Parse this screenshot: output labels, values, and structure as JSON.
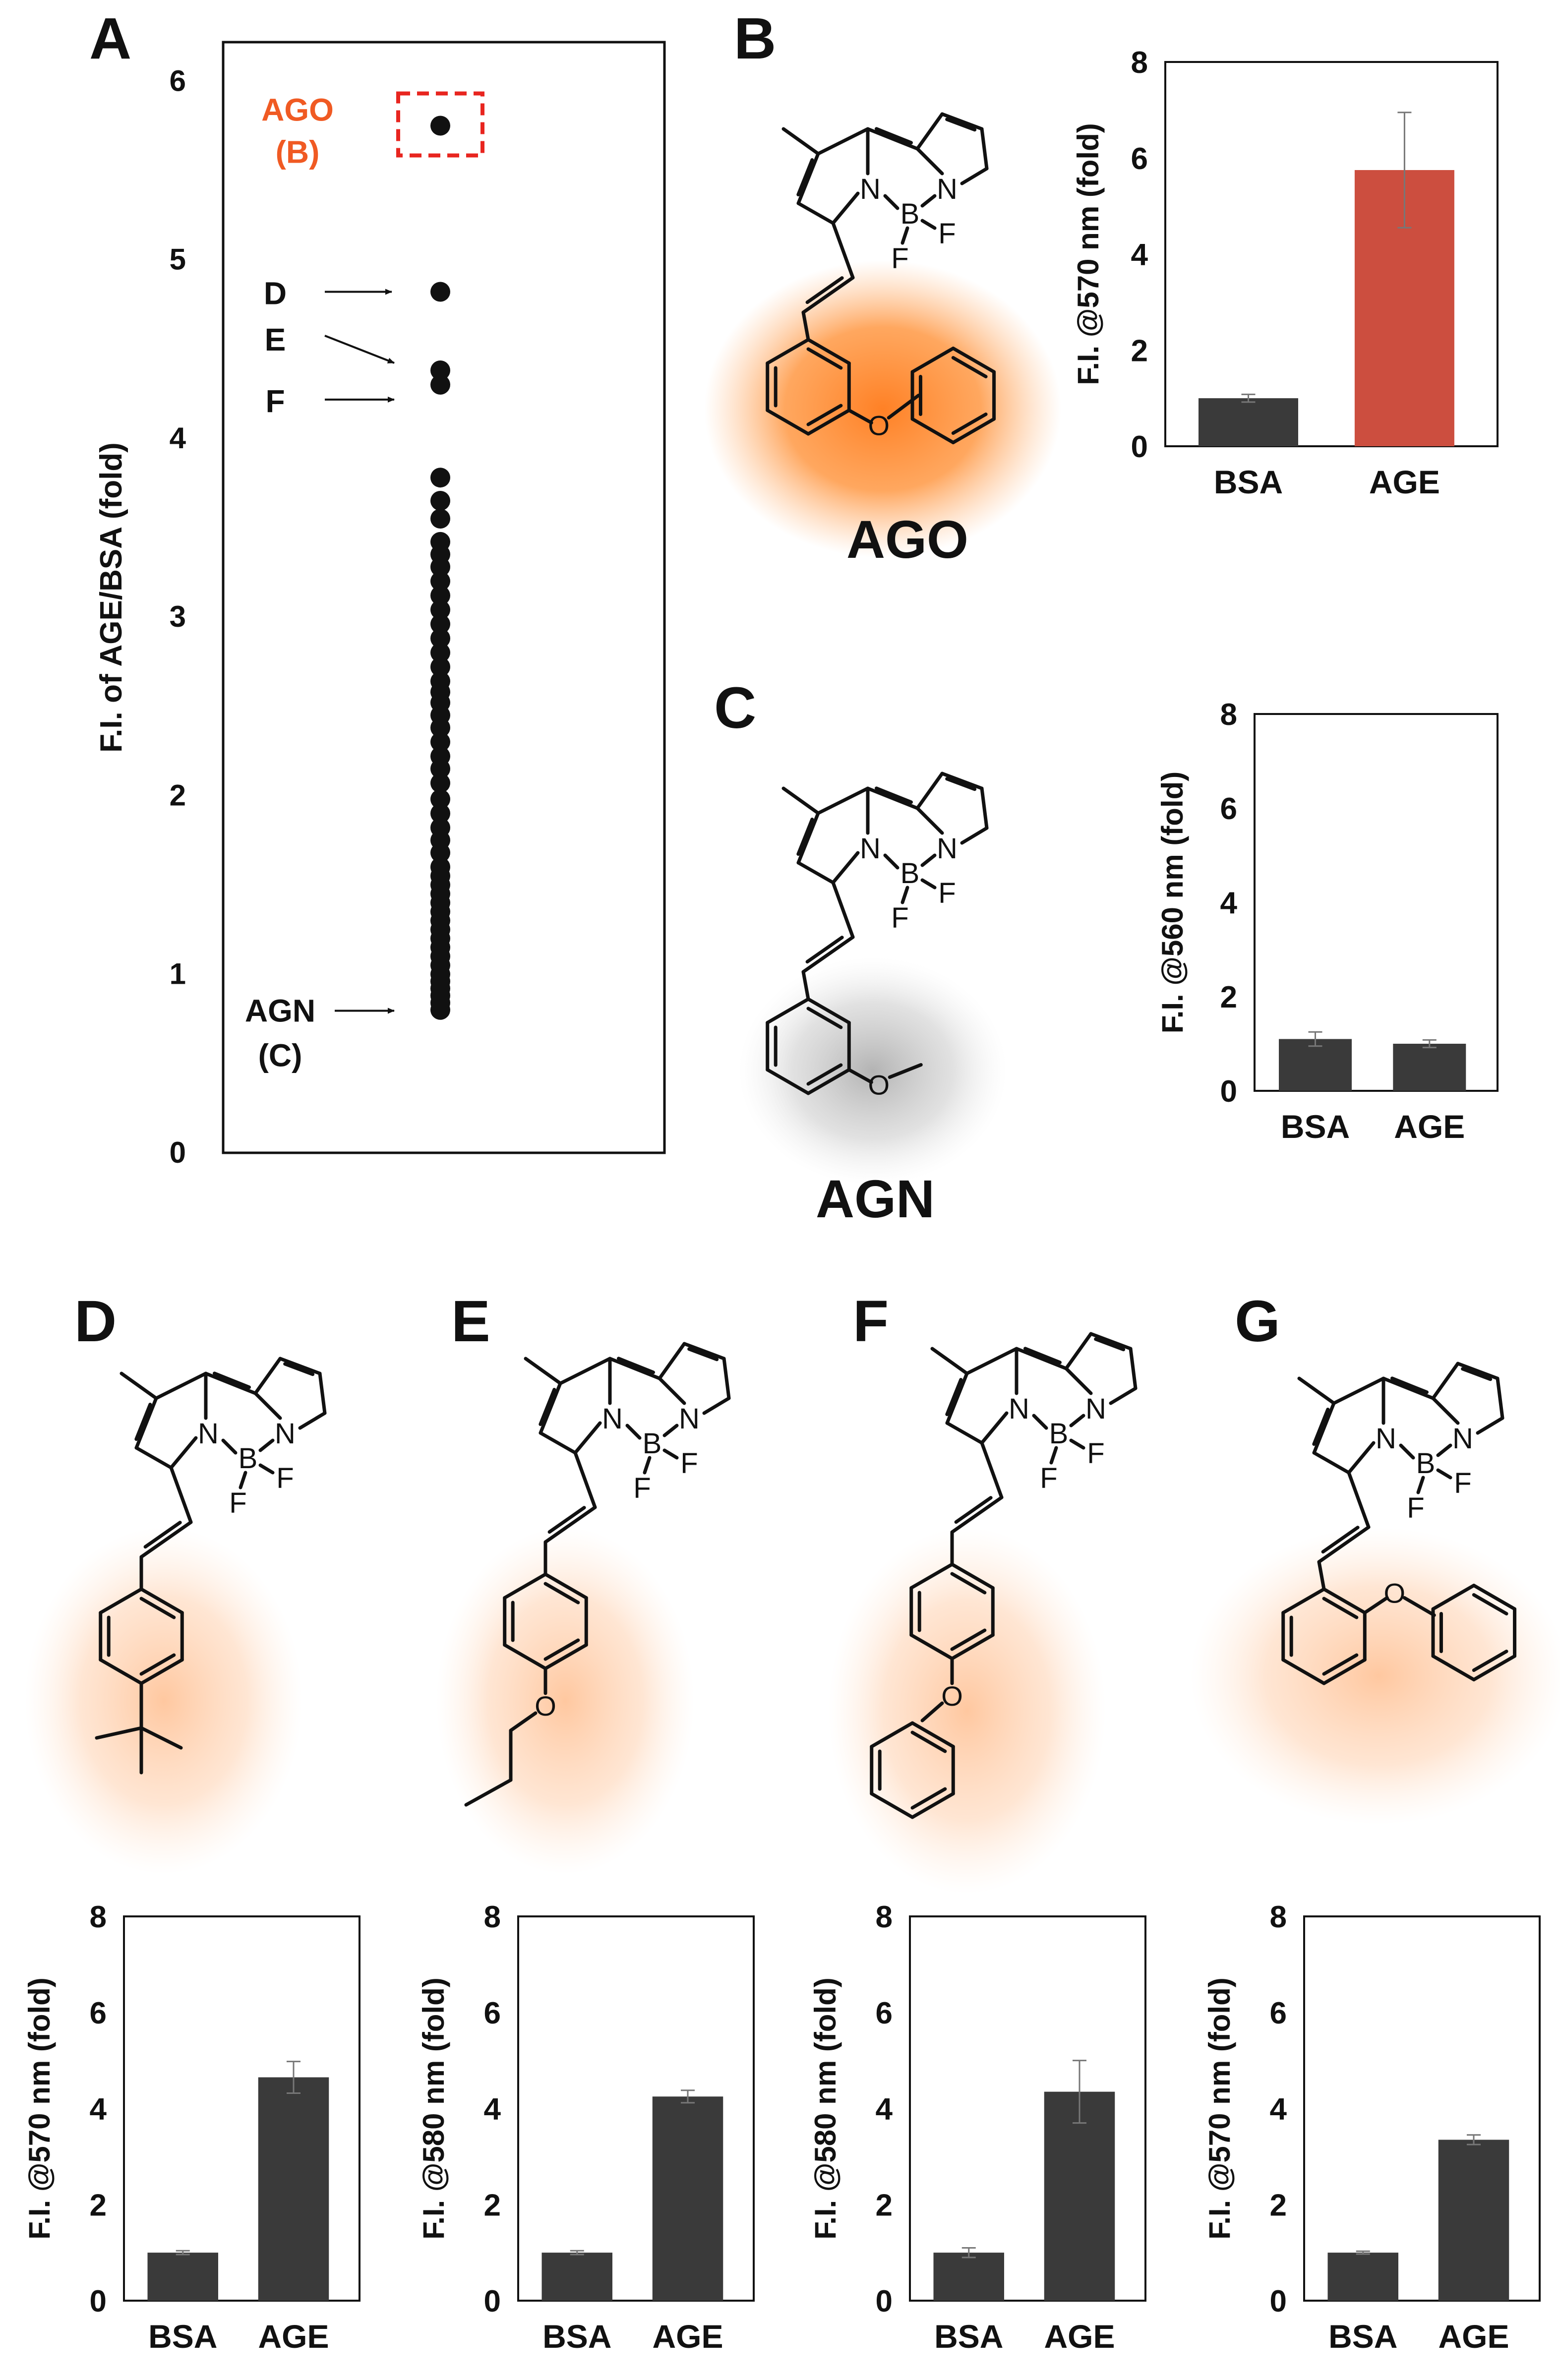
{
  "colors": {
    "ink": "#111111",
    "bar_gray": "#3a3a3a",
    "bar_red": "#cc4e3f",
    "highlight_orange": "#ff7a1a",
    "highlight_gray": "#9a9a9a",
    "label_orange": "#f05a23",
    "box_red": "#e8251f",
    "errorbar": "#777777"
  },
  "panels": {
    "A": "A",
    "B": "B",
    "C": "C",
    "D": "D",
    "E": "E",
    "F": "F",
    "G": "G"
  },
  "compounds": {
    "AGO": "AGO",
    "AGN": "AGN"
  },
  "atoms": {
    "N": "N",
    "B": "B",
    "F": "F",
    "O": "O"
  },
  "chart_data": [
    {
      "id": "A",
      "type": "scatter",
      "ylabel": "F.I. of AGE/BSA (fold)",
      "ylim": [
        0,
        6
      ],
      "yticks": [
        "0",
        "1",
        "2",
        "3",
        "4",
        "5",
        "6"
      ],
      "grid": false,
      "y": [
        5.75,
        4.82,
        4.38,
        4.3,
        3.78,
        3.65,
        3.55,
        3.42,
        3.35,
        3.28,
        3.2,
        3.12,
        3.04,
        2.96,
        2.88,
        2.8,
        2.72,
        2.64,
        2.58,
        2.52,
        2.45,
        2.38,
        2.3,
        2.22,
        2.15,
        2.07,
        1.98,
        1.9,
        1.82,
        1.75,
        1.68,
        1.6,
        1.55,
        1.5,
        1.45,
        1.4,
        1.35,
        1.3,
        1.25,
        1.2,
        1.15,
        1.1,
        1.05,
        1.0,
        0.96,
        0.92,
        0.88,
        0.84,
        0.8
      ],
      "annotations": [
        {
          "text": "AGO",
          "sub": "(B)",
          "y": 5.75
        },
        {
          "text": "D",
          "y": 4.82
        },
        {
          "text": "E",
          "y": 4.38
        },
        {
          "text": "F",
          "y": 4.3
        },
        {
          "text": "AGN",
          "sub": "(C)",
          "y": 0.92
        }
      ]
    },
    {
      "id": "B",
      "type": "bar",
      "categories": [
        "BSA",
        "AGE"
      ],
      "values": [
        1.0,
        5.75
      ],
      "errors": [
        0.08,
        1.2
      ],
      "ylabel": "F.I. @570 nm (fold)",
      "ylim": [
        0,
        8
      ],
      "yticks": [
        "0",
        "2",
        "4",
        "6",
        "8"
      ]
    },
    {
      "id": "C",
      "type": "bar",
      "categories": [
        "BSA",
        "AGE"
      ],
      "values": [
        1.1,
        1.0
      ],
      "errors": [
        0.15,
        0.08
      ],
      "ylabel": "F.I. @560 nm (fold)",
      "ylim": [
        0,
        8
      ],
      "yticks": [
        "0",
        "2",
        "4",
        "6",
        "8"
      ]
    },
    {
      "id": "D",
      "type": "bar",
      "categories": [
        "BSA",
        "AGE"
      ],
      "values": [
        1.0,
        4.65
      ],
      "errors": [
        0.04,
        0.33
      ],
      "ylabel": "F.I. @570 nm (fold)",
      "ylim": [
        0,
        8
      ],
      "yticks": [
        "0",
        "2",
        "4",
        "6",
        "8"
      ]
    },
    {
      "id": "E",
      "type": "bar",
      "categories": [
        "BSA",
        "AGE"
      ],
      "values": [
        1.0,
        4.25
      ],
      "errors": [
        0.04,
        0.13
      ],
      "ylabel": "F.I. @580 nm (fold)",
      "ylim": [
        0,
        8
      ],
      "yticks": [
        "0",
        "2",
        "4",
        "6",
        "8"
      ]
    },
    {
      "id": "F",
      "type": "bar",
      "categories": [
        "BSA",
        "AGE"
      ],
      "values": [
        1.0,
        4.35
      ],
      "errors": [
        0.1,
        0.65
      ],
      "ylabel": "F.I. @580 nm (fold)",
      "ylim": [
        0,
        8
      ],
      "yticks": [
        "0",
        "2",
        "4",
        "6",
        "8"
      ]
    },
    {
      "id": "G",
      "type": "bar",
      "categories": [
        "BSA",
        "AGE"
      ],
      "values": [
        1.0,
        3.35
      ],
      "errors": [
        0.03,
        0.1
      ],
      "ylabel": "F.I. @570 nm (fold)",
      "ylim": [
        0,
        8
      ],
      "yticks": [
        "0",
        "2",
        "4",
        "6",
        "8"
      ]
    }
  ]
}
